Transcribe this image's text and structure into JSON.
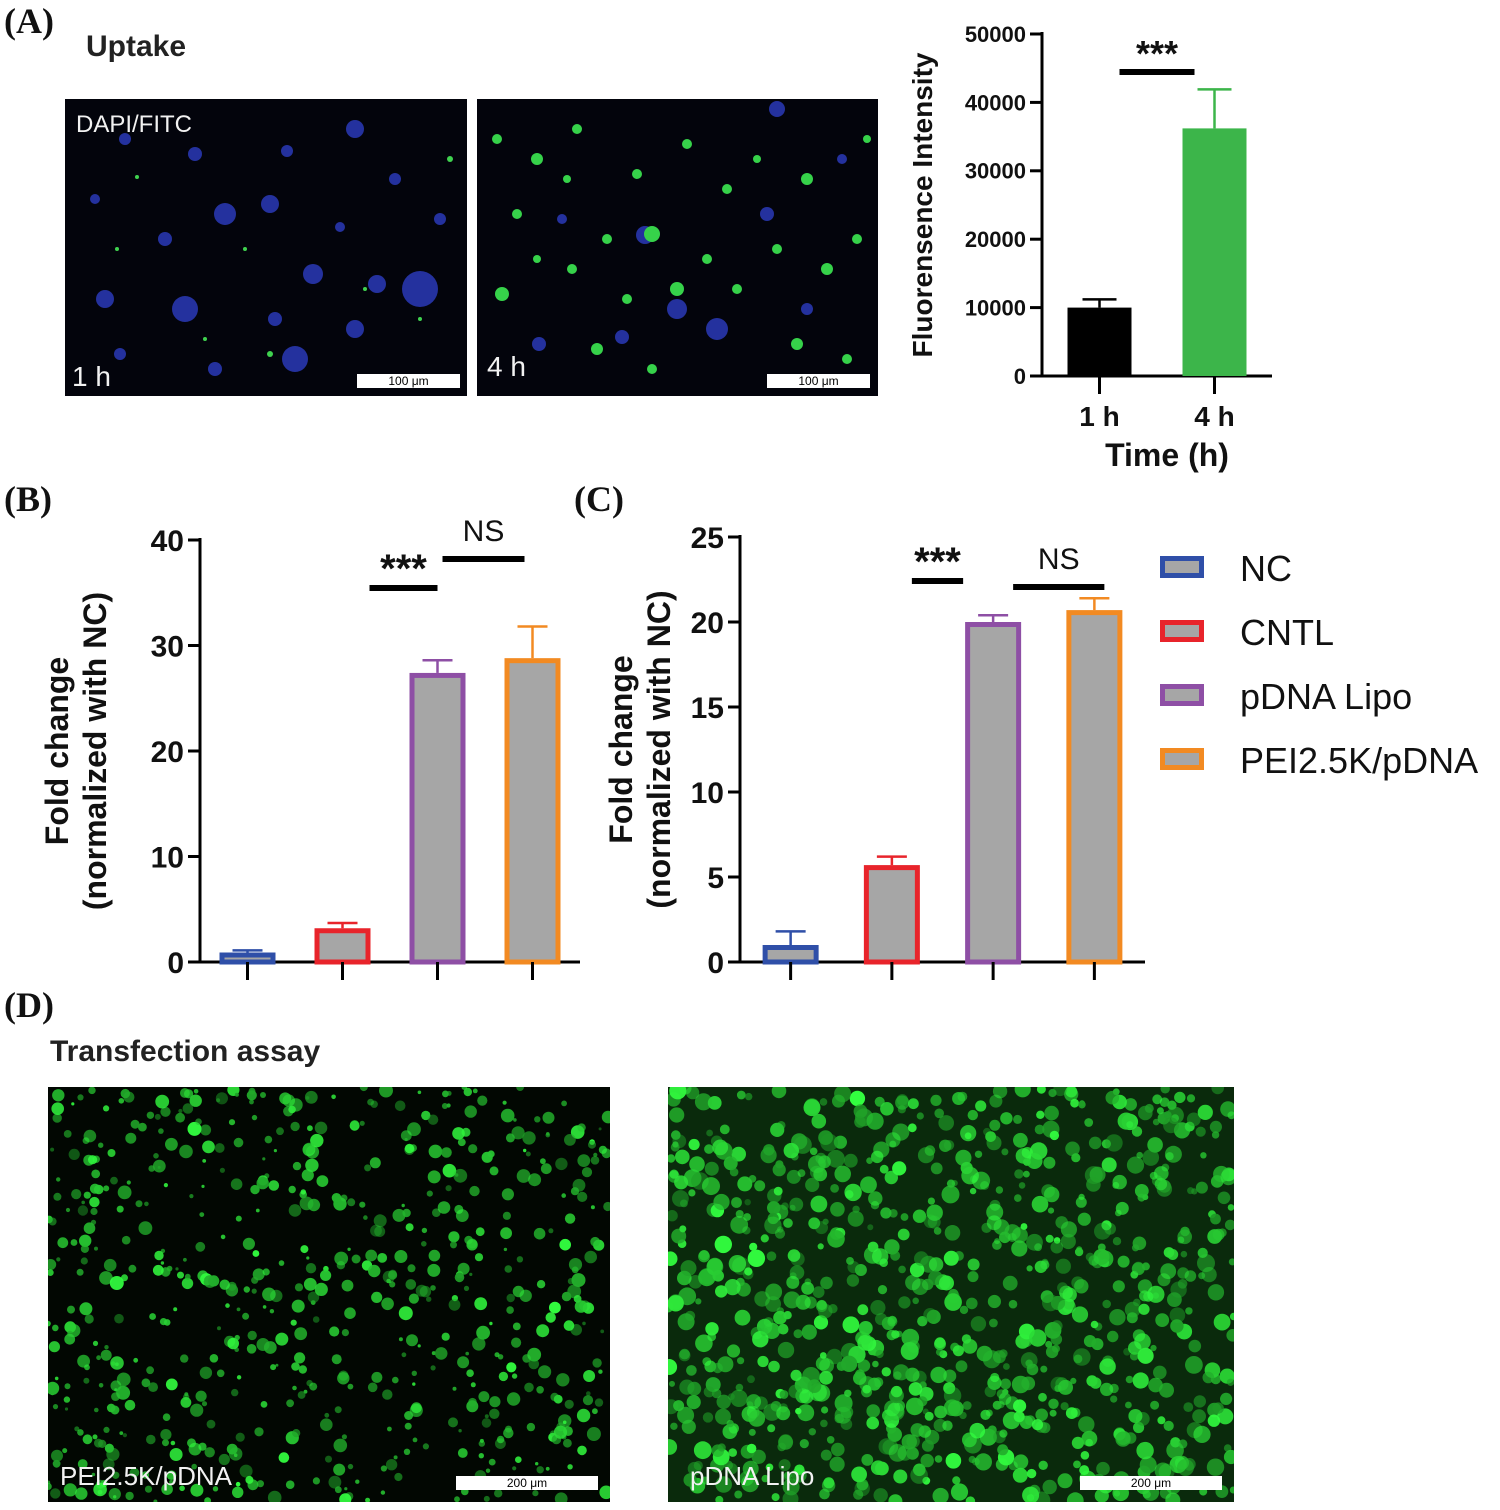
{
  "panels": {
    "a": {
      "letter": "(A)",
      "heading": "Uptake"
    },
    "b": {
      "letter": "(B)"
    },
    "c": {
      "letter": "(C)"
    },
    "d": {
      "letter": "(D)",
      "heading": "Transfection assay"
    }
  },
  "micrographs": {
    "uptake_1h": {
      "stain": "DAPI/FITC",
      "time": "1 h",
      "scale": "100 μm"
    },
    "uptake_4h": {
      "time": "4 h",
      "scale": "100 μm"
    },
    "transfection_pei": {
      "label": "PEI2.5K/pDNA",
      "scale": "200 μm"
    },
    "transfection_lipo": {
      "label": "pDNA Lipo",
      "scale": "200 μm"
    }
  },
  "legend": [
    {
      "label": "NC",
      "color": "#2f4fa8"
    },
    {
      "label": "CNTL",
      "color": "#e8242b"
    },
    {
      "label": "pDNA Lipo",
      "color": "#8e4fa5"
    },
    {
      "label": "PEI2.5K/pDNA",
      "color": "#f28a22"
    }
  ],
  "chart_data": [
    {
      "panel": "A",
      "type": "bar",
      "categories": [
        "1 h",
        "4 h"
      ],
      "values": [
        10000,
        36200
      ],
      "errors": [
        1200,
        5700
      ],
      "colors": [
        "#000000",
        "#3cb54a"
      ],
      "xlabel": "Time (h)",
      "ylabel": "Fluorensence Intensity",
      "ylim": [
        0,
        50000
      ],
      "yticks": [
        0,
        10000,
        20000,
        30000,
        40000,
        50000
      ],
      "significance": [
        {
          "from": 0,
          "to": 1,
          "label": "***"
        }
      ]
    },
    {
      "panel": "B",
      "type": "bar",
      "categories": [
        "NC",
        "CNTL",
        "pDNA Lipo",
        "PEI2.5K/pDNA"
      ],
      "values": [
        0.9,
        3.2,
        27.4,
        28.8
      ],
      "errors": [
        0.2,
        0.5,
        1.2,
        3.0
      ],
      "colors": [
        "#2f4fa8",
        "#e8242b",
        "#8e4fa5",
        "#f28a22"
      ],
      "fill": "#a6a6a6",
      "ylabel": "Fold change",
      "ylabel2": "(normalized with NC)",
      "ylim": [
        0,
        40
      ],
      "yticks": [
        0,
        10,
        20,
        30,
        40
      ],
      "significance": [
        {
          "from": 1,
          "to": 2,
          "label": "***"
        },
        {
          "from": 2,
          "to": 3,
          "label": "NS"
        }
      ]
    },
    {
      "panel": "C",
      "type": "bar",
      "categories": [
        "NC",
        "CNTL",
        "pDNA Lipo",
        "PEI2.5K/pDNA"
      ],
      "values": [
        1.0,
        5.7,
        20.0,
        20.7
      ],
      "errors": [
        0.8,
        0.5,
        0.4,
        0.7
      ],
      "colors": [
        "#2f4fa8",
        "#e8242b",
        "#8e4fa5",
        "#f28a22"
      ],
      "fill": "#a6a6a6",
      "ylabel": "Fold change",
      "ylabel2": "(normalized with NC)",
      "ylim": [
        0,
        25
      ],
      "yticks": [
        0,
        5,
        10,
        15,
        20,
        25
      ],
      "significance": [
        {
          "from": 1,
          "to": 2,
          "label": "***"
        },
        {
          "from": 2,
          "to": 3,
          "label": "NS"
        }
      ]
    }
  ]
}
